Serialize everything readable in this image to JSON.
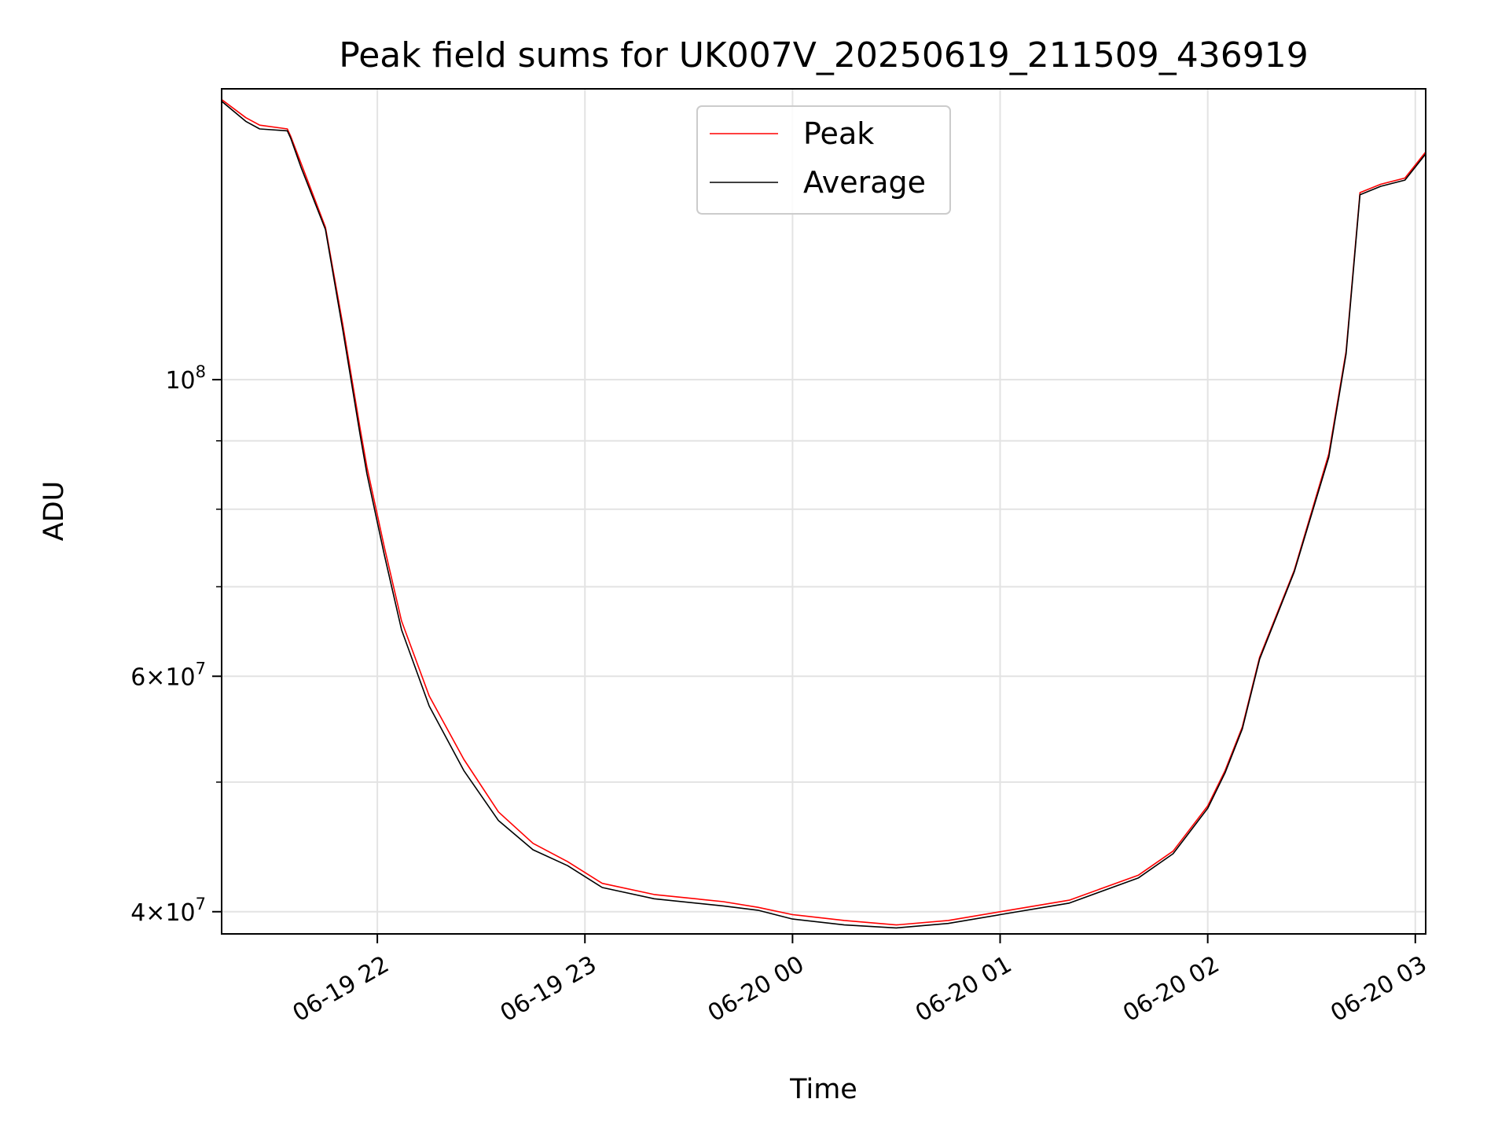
{
  "chart_data": {
    "type": "line",
    "title": "Peak field sums for UK007V_20250619_211509_436919",
    "xlabel": "Time",
    "ylabel": "ADU",
    "x_range": [
      "2025-06-19 21:15",
      "2025-06-20 03:03"
    ],
    "ylim": [
      38500000,
      165000000
    ],
    "y_scale": "log",
    "grid": true,
    "legend_position": "upper center",
    "x_ticks": [
      {
        "label": "06-19 22",
        "value": "2025-06-19 22:00"
      },
      {
        "label": "06-19 23",
        "value": "2025-06-19 23:00"
      },
      {
        "label": "06-20 00",
        "value": "2025-06-20 00:00"
      },
      {
        "label": "06-20 01",
        "value": "2025-06-20 01:00"
      },
      {
        "label": "06-20 02",
        "value": "2025-06-20 02:00"
      },
      {
        "label": "06-20 03",
        "value": "2025-06-20 03:00"
      }
    ],
    "y_major_ticks": [
      {
        "value": 40000000,
        "base": "4",
        "exp": "7"
      },
      {
        "value": 60000000,
        "base": "6",
        "exp": "7"
      },
      {
        "value": 100000000,
        "base": "",
        "exp": "8"
      }
    ],
    "y_minor_ticks": [
      50000000,
      70000000,
      80000000,
      90000000
    ],
    "series": [
      {
        "name": "Peak",
        "color": "#ff0000",
        "x": [
          "2025-06-19 21:15",
          "2025-06-19 21:22",
          "2025-06-19 21:26",
          "2025-06-19 21:34",
          "2025-06-19 21:35",
          "2025-06-19 21:38",
          "2025-06-19 21:45",
          "2025-06-19 21:50",
          "2025-06-19 21:55",
          "2025-06-19 21:57",
          "2025-06-19 22:02",
          "2025-06-19 22:07",
          "2025-06-19 22:15",
          "2025-06-19 22:25",
          "2025-06-19 22:35",
          "2025-06-19 22:45",
          "2025-06-19 22:55",
          "2025-06-19 23:05",
          "2025-06-19 23:20",
          "2025-06-19 23:40",
          "2025-06-19 23:50",
          "2025-06-20 00:00",
          "2025-06-20 00:15",
          "2025-06-20 00:30",
          "2025-06-20 00:45",
          "2025-06-20 01:00",
          "2025-06-20 01:20",
          "2025-06-20 01:40",
          "2025-06-20 01:50",
          "2025-06-20 02:00",
          "2025-06-20 02:05",
          "2025-06-20 02:10",
          "2025-06-20 02:15",
          "2025-06-20 02:25",
          "2025-06-20 02:35",
          "2025-06-20 02:40",
          "2025-06-20 02:44",
          "2025-06-20 02:50",
          "2025-06-20 02:57",
          "2025-06-20 03:03"
        ],
        "values": [
          162000000,
          157000000,
          155000000,
          154000000,
          152000000,
          145000000,
          130000000,
          110000000,
          92000000,
          86000000,
          75000000,
          66000000,
          58000000,
          52000000,
          47500000,
          45000000,
          43600000,
          42000000,
          41200000,
          40700000,
          40300000,
          39800000,
          39400000,
          39100000,
          39400000,
          40000000,
          40800000,
          42600000,
          44400000,
          48000000,
          51000000,
          55000000,
          62000000,
          72000000,
          88000000,
          105000000,
          138000000,
          140000000,
          141500000,
          148000000
        ]
      },
      {
        "name": "Average",
        "color": "#000000",
        "x": [
          "2025-06-19 21:15",
          "2025-06-19 21:22",
          "2025-06-19 21:26",
          "2025-06-19 21:34",
          "2025-06-19 21:35",
          "2025-06-19 21:38",
          "2025-06-19 21:45",
          "2025-06-19 21:50",
          "2025-06-19 21:55",
          "2025-06-19 21:57",
          "2025-06-19 22:02",
          "2025-06-19 22:07",
          "2025-06-19 22:15",
          "2025-06-19 22:25",
          "2025-06-19 22:35",
          "2025-06-19 22:45",
          "2025-06-19 22:55",
          "2025-06-19 23:05",
          "2025-06-19 23:20",
          "2025-06-19 23:40",
          "2025-06-19 23:50",
          "2025-06-20 00:00",
          "2025-06-20 00:15",
          "2025-06-20 00:30",
          "2025-06-20 00:45",
          "2025-06-20 01:00",
          "2025-06-20 01:20",
          "2025-06-20 01:40",
          "2025-06-20 01:50",
          "2025-06-20 02:00",
          "2025-06-20 02:05",
          "2025-06-20 02:10",
          "2025-06-20 02:15",
          "2025-06-20 02:25",
          "2025-06-20 02:35",
          "2025-06-20 02:40",
          "2025-06-20 02:44",
          "2025-06-20 02:50",
          "2025-06-20 02:57",
          "2025-06-20 03:03"
        ],
        "values": [
          161500000,
          156000000,
          154000000,
          153500000,
          151500000,
          144000000,
          129500000,
          109000000,
          91000000,
          85000000,
          74000000,
          65000000,
          57000000,
          51000000,
          46800000,
          44500000,
          43300000,
          41700000,
          40900000,
          40400000,
          40100000,
          39500000,
          39100000,
          38900000,
          39200000,
          39800000,
          40600000,
          42400000,
          44200000,
          47800000,
          50800000,
          54800000,
          61800000,
          71800000,
          87500000,
          104500000,
          137500000,
          139500000,
          141000000,
          147500000
        ]
      }
    ]
  }
}
